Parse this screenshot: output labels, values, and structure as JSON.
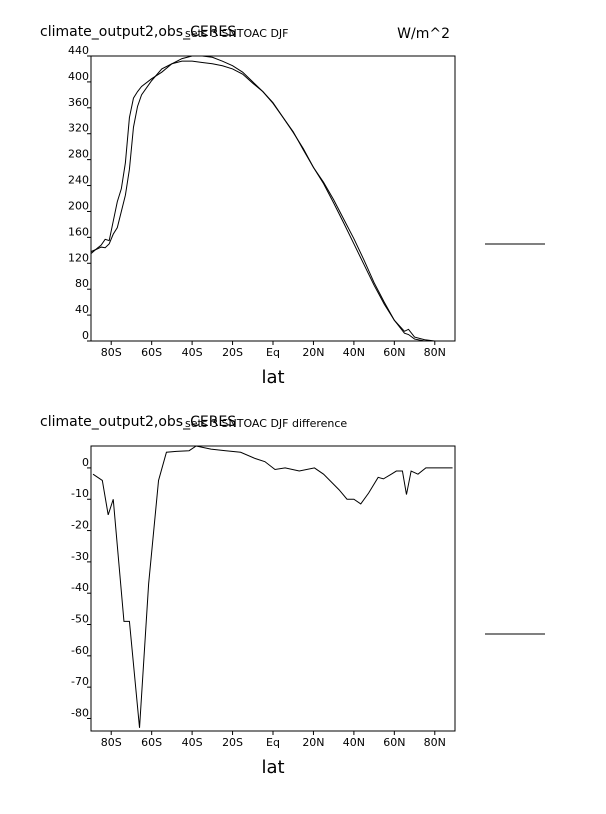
{
  "chart_data": [
    {
      "type": "line",
      "title": "climate_output2,obs_CERES",
      "subtitle": "sets 3 SNTOAC DJF",
      "units": "W/m^2",
      "x_label": "lat",
      "x": [
        -90,
        -87,
        -85,
        -83,
        -81,
        -79,
        -77,
        -75,
        -73,
        -71,
        -69,
        -67,
        -65,
        -60,
        -55,
        -50,
        -45,
        -40,
        -35,
        -30,
        -25,
        -20,
        -15,
        -10,
        -5,
        0,
        5,
        10,
        15,
        20,
        25,
        30,
        35,
        40,
        45,
        50,
        55,
        60,
        65,
        67,
        70,
        75,
        80,
        85,
        90
      ],
      "series": [
        {
          "color": "#000000",
          "values": [
            135,
            143,
            148,
            157,
            155,
            185,
            215,
            235,
            275,
            345,
            375,
            385,
            393,
            405,
            415,
            428,
            436,
            440,
            440,
            438,
            432,
            425,
            415,
            400,
            385,
            367,
            345,
            322,
            297,
            268,
            243,
            213,
            182,
            150,
            118,
            86,
            57,
            32,
            12,
            10,
            3,
            0,
            0,
            0,
            0
          ]
        },
        {
          "color": "#000000",
          "values": [
            138,
            142,
            145,
            144,
            150,
            165,
            175,
            200,
            225,
            265,
            330,
            362,
            380,
            402,
            420,
            428,
            432,
            432,
            430,
            428,
            425,
            420,
            412,
            398,
            385,
            368,
            345,
            323,
            295,
            268,
            245,
            218,
            188,
            158,
            125,
            90,
            60,
            32,
            15,
            18,
            6,
            2,
            0,
            0,
            0
          ]
        }
      ],
      "xlim": [
        -90,
        90
      ],
      "xticks": [
        {
          "value": -80,
          "label": "80S"
        },
        {
          "value": -60,
          "label": "60S"
        },
        {
          "value": -40,
          "label": "40S"
        },
        {
          "value": -20,
          "label": "20S"
        },
        {
          "value": 0,
          "label": "Eq"
        },
        {
          "value": 20,
          "label": "20N"
        },
        {
          "value": 40,
          "label": "40N"
        },
        {
          "value": 60,
          "label": "60N"
        },
        {
          "value": 80,
          "label": "80N"
        }
      ],
      "ylim": [
        0,
        440
      ],
      "yticks": [
        0,
        40,
        80,
        120,
        160,
        200,
        240,
        280,
        320,
        360,
        400,
        440
      ]
    },
    {
      "type": "line",
      "title": "climate_output2,obs_CERES",
      "subtitle": "sets 3 SNTOAC DJF difference",
      "x_label": "lat",
      "x": [
        -89,
        -84.4,
        -81.5,
        -79,
        -73.7,
        -71,
        -66,
        -61.5,
        -56.6,
        -52.7,
        -47.8,
        -41.5,
        -38,
        -30.7,
        -23.4,
        -16,
        -8.8,
        -4,
        1,
        6,
        13,
        20.5,
        25,
        32.7,
        36.6,
        40,
        43.4,
        47.3,
        52,
        54.6,
        58.5,
        61,
        64,
        66,
        68.3,
        71.7,
        75.6,
        81.5,
        88.8
      ],
      "series": [
        {
          "color": "#000000",
          "values": [
            -2,
            -4,
            -15,
            -10,
            -49,
            -49,
            -83,
            -37,
            -4,
            5,
            5.3,
            5.5,
            7,
            6,
            5.5,
            5,
            3,
            2,
            -0.5,
            0,
            -1,
            0,
            -2,
            -7,
            -10,
            -10,
            -11.5,
            -8,
            -3,
            -3.5,
            -2,
            -1,
            -1,
            -8.5,
            -1,
            -2,
            0,
            0,
            0
          ]
        }
      ],
      "xlim": [
        -90,
        90
      ],
      "xticks": [
        {
          "value": -80,
          "label": "80S"
        },
        {
          "value": -60,
          "label": "60S"
        },
        {
          "value": -40,
          "label": "40S"
        },
        {
          "value": -20,
          "label": "20S"
        },
        {
          "value": 0,
          "label": "Eq"
        },
        {
          "value": 20,
          "label": "20N"
        },
        {
          "value": 40,
          "label": "40N"
        },
        {
          "value": 60,
          "label": "60N"
        },
        {
          "value": 80,
          "label": "80N"
        }
      ],
      "ylim": [
        -84,
        7
      ],
      "yticks": [
        0,
        -10,
        -20,
        -30,
        -40,
        -50,
        -60,
        -70,
        -80
      ]
    }
  ]
}
